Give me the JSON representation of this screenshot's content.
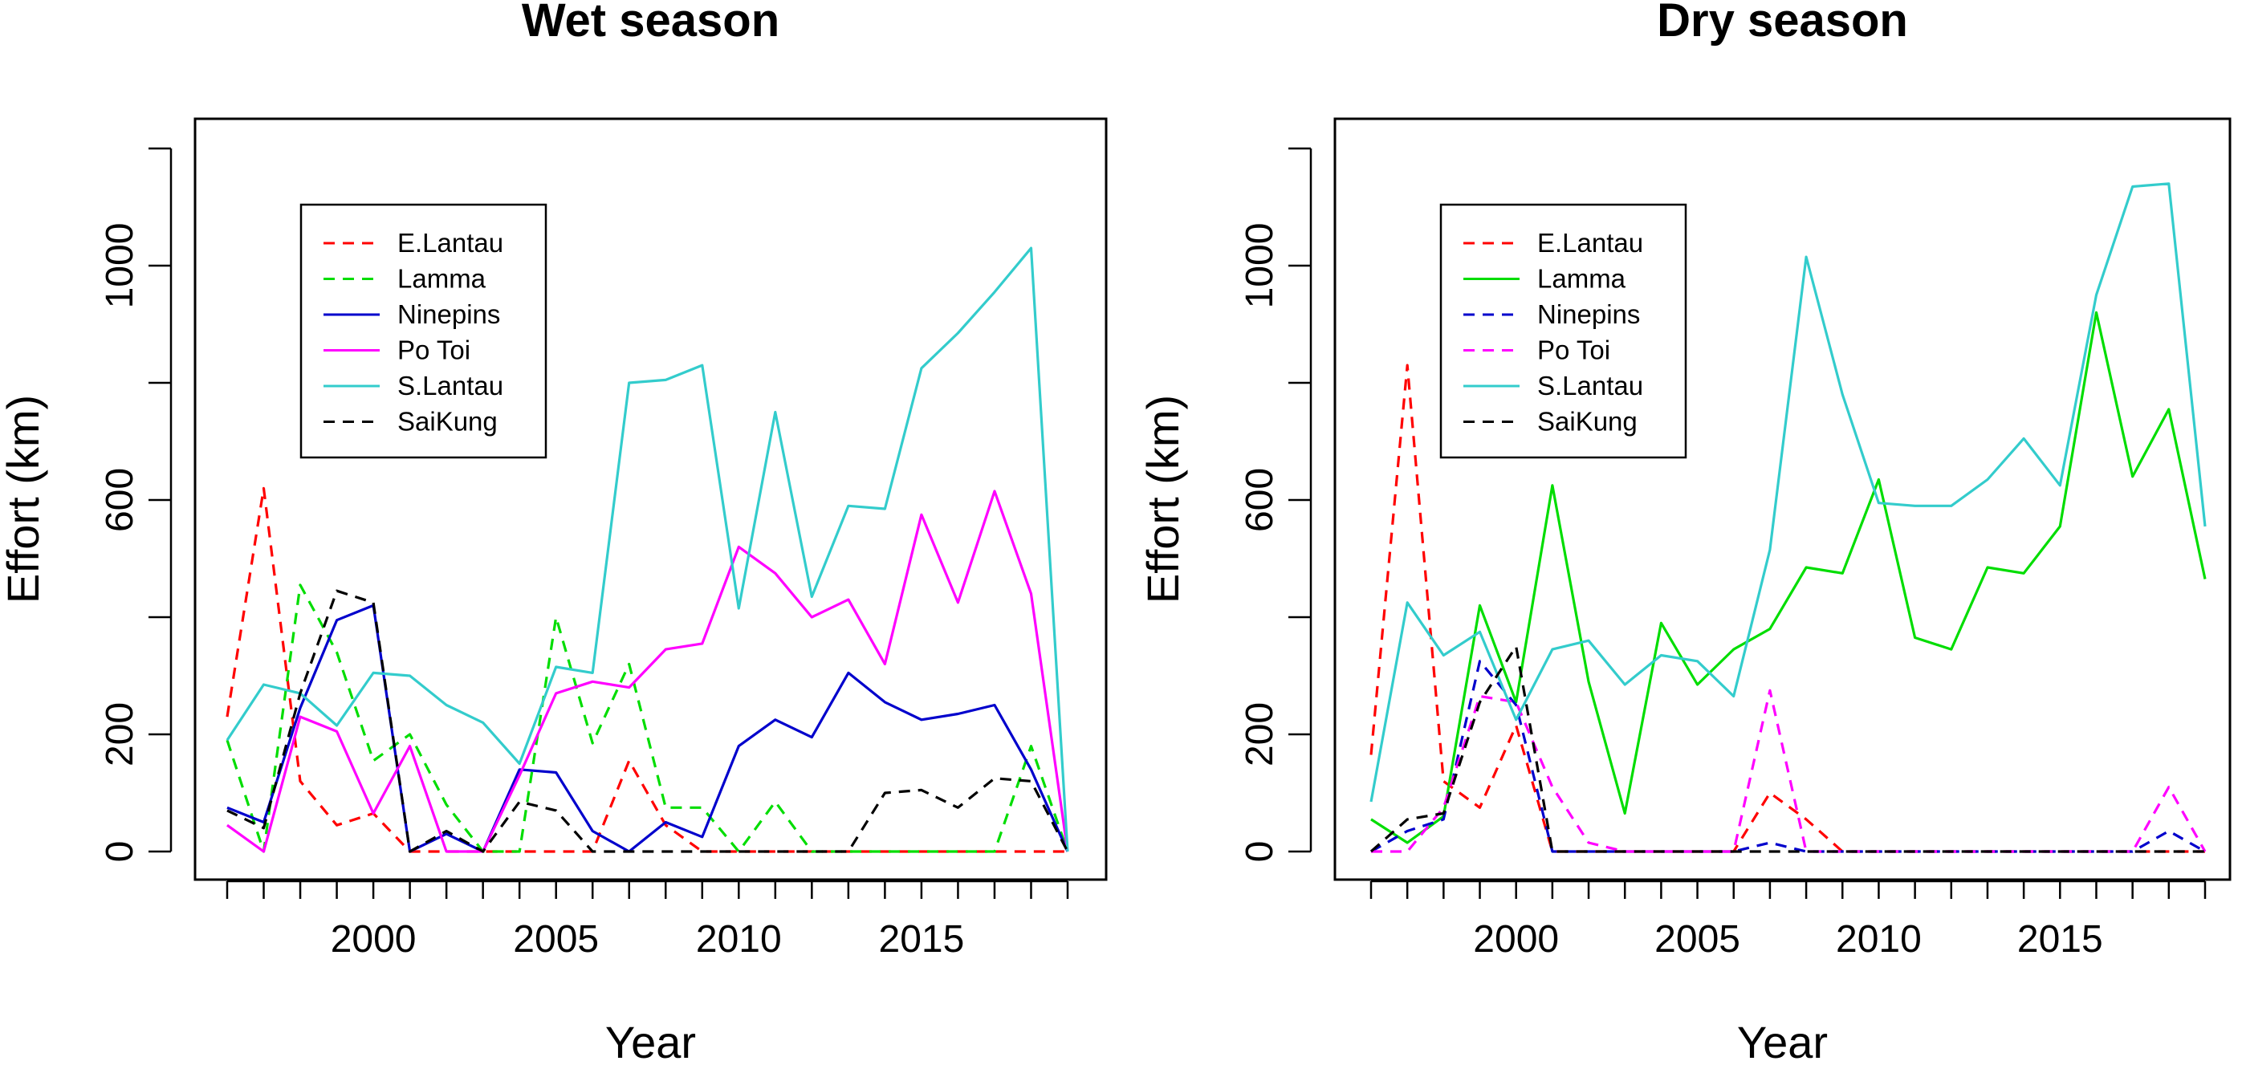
{
  "chart_data": [
    {
      "type": "line",
      "title": "Wet season",
      "xlabel": "Year",
      "ylabel": "Effort (km)",
      "xlim": [
        1996,
        2019
      ],
      "ylim": [
        0,
        1200
      ],
      "xticks": [
        2000,
        2005,
        2010,
        2015
      ],
      "yticks": [
        0,
        200,
        600,
        1000
      ],
      "grid": false,
      "legend_position": "top-left",
      "x": [
        1996,
        1997,
        1998,
        1999,
        2000,
        2001,
        2002,
        2003,
        2004,
        2005,
        2006,
        2007,
        2008,
        2009,
        2010,
        2011,
        2012,
        2013,
        2014,
        2015,
        2016,
        2017,
        2018,
        2019
      ],
      "series": [
        {
          "name": "E.Lantau",
          "color": "#ff0000",
          "dash": "dashed",
          "values": [
            230,
            620,
            120,
            45,
            65,
            0,
            0,
            0,
            0,
            0,
            0,
            155,
            45,
            0,
            0,
            0,
            0,
            0,
            0,
            0,
            0,
            0,
            0,
            0
          ]
        },
        {
          "name": "Lamma",
          "color": "#00dd00",
          "dash": "dashed",
          "values": [
            190,
            0,
            455,
            340,
            155,
            200,
            80,
            0,
            0,
            400,
            185,
            320,
            75,
            75,
            0,
            85,
            0,
            0,
            0,
            0,
            0,
            0,
            180,
            0
          ]
        },
        {
          "name": "Ninepins",
          "color": "#0000cc",
          "dash": "solid",
          "values": [
            75,
            50,
            245,
            395,
            420,
            0,
            30,
            0,
            140,
            135,
            35,
            0,
            50,
            25,
            180,
            225,
            195,
            305,
            255,
            225,
            235,
            250,
            140,
            0
          ]
        },
        {
          "name": "Po Toi",
          "color": "#ff00ff",
          "dash": "solid",
          "values": [
            45,
            0,
            230,
            205,
            65,
            180,
            0,
            0,
            130,
            270,
            290,
            280,
            345,
            355,
            520,
            475,
            400,
            430,
            320,
            575,
            425,
            615,
            440,
            0
          ]
        },
        {
          "name": "S.Lantau",
          "color": "#33cccc",
          "dash": "solid",
          "values": [
            190,
            285,
            270,
            215,
            305,
            300,
            250,
            220,
            150,
            315,
            305,
            800,
            805,
            830,
            415,
            750,
            435,
            590,
            585,
            825,
            885,
            955,
            1030,
            0
          ]
        },
        {
          "name": "SaiKung",
          "color": "#000000",
          "dash": "dashed",
          "values": [
            70,
            40,
            270,
            445,
            425,
            0,
            35,
            0,
            85,
            70,
            0,
            0,
            0,
            0,
            0,
            0,
            0,
            0,
            100,
            105,
            75,
            125,
            120,
            0
          ]
        }
      ]
    },
    {
      "type": "line",
      "title": "Dry season",
      "xlabel": "Year",
      "ylabel": "Effort (km)",
      "xlim": [
        1996,
        2019
      ],
      "ylim": [
        0,
        1200
      ],
      "xticks": [
        2000,
        2005,
        2010,
        2015
      ],
      "yticks": [
        0,
        200,
        600,
        1000
      ],
      "grid": false,
      "legend_position": "top-left",
      "x": [
        1996,
        1997,
        1998,
        1999,
        2000,
        2001,
        2002,
        2003,
        2004,
        2005,
        2006,
        2007,
        2008,
        2009,
        2010,
        2011,
        2012,
        2013,
        2014,
        2015,
        2016,
        2017,
        2018,
        2019
      ],
      "series": [
        {
          "name": "E.Lantau",
          "color": "#ff0000",
          "dash": "dashed",
          "values": [
            165,
            830,
            120,
            75,
            215,
            0,
            0,
            0,
            0,
            0,
            0,
            100,
            55,
            0,
            0,
            0,
            0,
            0,
            0,
            0,
            0,
            0,
            0,
            0
          ]
        },
        {
          "name": "Lamma",
          "color": "#00dd00",
          "dash": "solid",
          "values": [
            55,
            15,
            60,
            420,
            255,
            625,
            290,
            65,
            390,
            285,
            345,
            380,
            485,
            475,
            635,
            365,
            345,
            485,
            475,
            555,
            920,
            640,
            755,
            465
          ]
        },
        {
          "name": "Ninepins",
          "color": "#0000cc",
          "dash": "dashed",
          "values": [
            0,
            35,
            55,
            325,
            250,
            0,
            0,
            0,
            0,
            0,
            0,
            15,
            0,
            0,
            0,
            0,
            0,
            0,
            0,
            0,
            0,
            0,
            35,
            0
          ]
        },
        {
          "name": "Po Toi",
          "color": "#ff00ff",
          "dash": "dashed",
          "values": [
            0,
            0,
            75,
            265,
            255,
            110,
            15,
            0,
            0,
            0,
            0,
            275,
            0,
            0,
            0,
            0,
            0,
            0,
            0,
            0,
            0,
            0,
            110,
            0
          ]
        },
        {
          "name": "S.Lantau",
          "color": "#33cccc",
          "dash": "solid",
          "values": [
            85,
            425,
            335,
            375,
            225,
            345,
            360,
            285,
            335,
            325,
            265,
            515,
            1015,
            780,
            595,
            590,
            590,
            635,
            705,
            625,
            950,
            1135,
            1140,
            555
          ]
        },
        {
          "name": "SaiKung",
          "color": "#000000",
          "dash": "dashed",
          "values": [
            0,
            55,
            65,
            255,
            350,
            0,
            0,
            0,
            0,
            0,
            0,
            0,
            0,
            0,
            0,
            0,
            0,
            0,
            0,
            0,
            0,
            0,
            0,
            0
          ]
        }
      ]
    }
  ]
}
